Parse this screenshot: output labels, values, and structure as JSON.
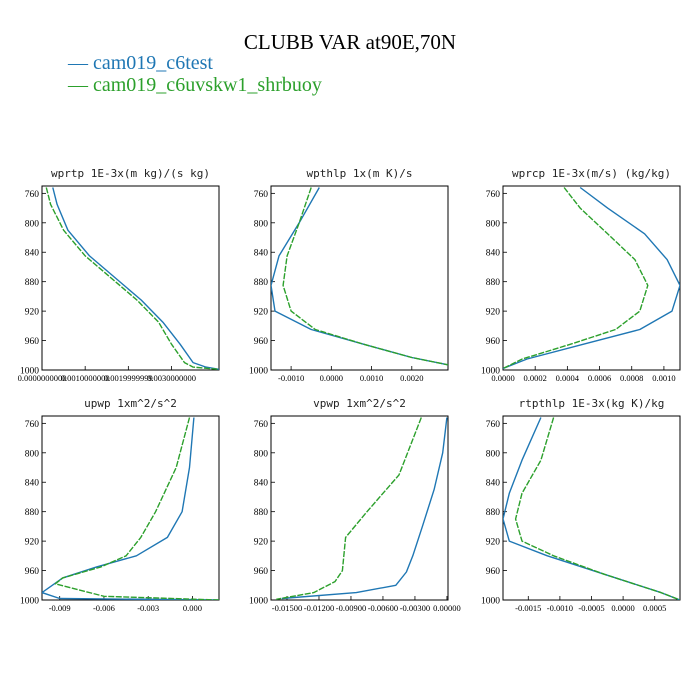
{
  "title": "CLUBB VAR at90E,70N",
  "legend": [
    {
      "label": "cam019_c6test",
      "color": "#1f77b4"
    },
    {
      "label": "cam019_c6uvskw1_shrbuoy",
      "color": "#2ca02c"
    }
  ],
  "chart_data": [
    {
      "type": "line",
      "title": "wprtp  1E-3x(m kg)/(s kg)",
      "ylim": [
        1000,
        750
      ],
      "yticks": [
        760,
        800,
        840,
        880,
        920,
        960,
        1000
      ],
      "xlim": [
        0.0,
        0.0041
      ],
      "xticks": [
        0.0,
        0.001,
        0.002,
        0.003
      ],
      "xtick_labels": [
        "0.0000000000",
        "0.0010000000",
        "0.0019999999",
        "0.0030000000"
      ],
      "series": [
        {
          "name": "cam019_c6test",
          "x": [
            0.00025,
            0.00035,
            0.0006,
            0.0011,
            0.0017,
            0.0023,
            0.0028,
            0.0032,
            0.0035,
            0.0038,
            0.0041
          ],
          "y": [
            752,
            775,
            810,
            845,
            875,
            905,
            935,
            965,
            990,
            996,
            999
          ]
        },
        {
          "name": "cam019_c6uvskw1_shrbuoy",
          "x": [
            0.0001,
            0.0002,
            0.0005,
            0.001,
            0.0016,
            0.0022,
            0.0027,
            0.003,
            0.0033,
            0.0035,
            0.0041
          ],
          "y": [
            752,
            775,
            810,
            845,
            875,
            905,
            935,
            965,
            990,
            996,
            999
          ]
        }
      ]
    },
    {
      "type": "line",
      "title": "wpthlp  1x(m K)/s",
      "ylim": [
        1000,
        750
      ],
      "yticks": [
        760,
        800,
        840,
        880,
        920,
        960,
        1000
      ],
      "xlim": [
        -0.0015,
        0.0029
      ],
      "xticks": [
        -0.001,
        0.0,
        0.001,
        0.002
      ],
      "xtick_labels": [
        "-0.0010",
        "0.0000",
        "0.0010",
        "0.0020"
      ],
      "series": [
        {
          "name": "cam019_c6test",
          "x": [
            -0.0003,
            -0.0008,
            -0.0013,
            -0.0015,
            -0.0014,
            -0.0005,
            0.0008,
            0.002,
            0.0029
          ],
          "y": [
            752,
            800,
            845,
            885,
            920,
            945,
            965,
            983,
            993
          ]
        },
        {
          "name": "cam019_c6uvskw1_shrbuoy",
          "x": [
            -0.0005,
            -0.0008,
            -0.0011,
            -0.0012,
            -0.001,
            -0.0004,
            0.0008,
            0.002,
            0.0029
          ],
          "y": [
            752,
            800,
            845,
            885,
            920,
            945,
            965,
            983,
            993
          ]
        }
      ]
    },
    {
      "type": "line",
      "title": "wprcp  1E-3x(m/s) (kg/kg)",
      "ylim": [
        1000,
        750
      ],
      "yticks": [
        760,
        800,
        840,
        880,
        920,
        960,
        1000
      ],
      "xlim": [
        0.0,
        0.0011
      ],
      "xticks": [
        0.0,
        0.0002,
        0.0004,
        0.0006,
        0.0008,
        0.001
      ],
      "xtick_labels": [
        "0.0000",
        "0.0002",
        "0.0004",
        "0.0006",
        "0.0008",
        "0.0010"
      ],
      "series": [
        {
          "name": "cam019_c6test",
          "x": [
            0.00048,
            0.00065,
            0.00088,
            0.00102,
            0.0011,
            0.00105,
            0.00085,
            0.0005,
            0.00015,
            0.0
          ],
          "y": [
            752,
            780,
            815,
            850,
            885,
            920,
            945,
            965,
            985,
            998
          ]
        },
        {
          "name": "cam019_c6uvskw1_shrbuoy",
          "x": [
            0.00038,
            0.00048,
            0.00065,
            0.00082,
            0.0009,
            0.00085,
            0.0007,
            0.00042,
            0.00012,
            0.0
          ],
          "y": [
            752,
            780,
            815,
            850,
            885,
            920,
            945,
            965,
            985,
            998
          ]
        }
      ]
    },
    {
      "type": "line",
      "title": "upwp  1xm^2/s^2",
      "ylim": [
        1000,
        750
      ],
      "yticks": [
        760,
        800,
        840,
        880,
        920,
        960,
        1000
      ],
      "xlim": [
        -0.0102,
        0.0018
      ],
      "xticks": [
        -0.009,
        -0.006,
        -0.003,
        0.0
      ],
      "xtick_labels": [
        "-0.009",
        "-0.006",
        "-0.003",
        "0.000"
      ],
      "series": [
        {
          "name": "cam019_c6test",
          "x": [
            0.0001,
            -0.0002,
            -0.0007,
            -0.0017,
            -0.0038,
            -0.0065,
            -0.0088,
            -0.0102,
            -0.009,
            0.0018
          ],
          "y": [
            752,
            820,
            880,
            915,
            940,
            955,
            970,
            990,
            998,
            1000
          ]
        },
        {
          "name": "cam019_c6uvskw1_shrbuoy",
          "x": [
            -0.0002,
            -0.0011,
            -0.0025,
            -0.0035,
            -0.0045,
            -0.0062,
            -0.0088,
            -0.0093,
            -0.006,
            0.0018
          ],
          "y": [
            752,
            820,
            880,
            915,
            940,
            955,
            970,
            978,
            995,
            1000
          ]
        }
      ]
    },
    {
      "type": "line",
      "title": "vpwp  1xm^2/s^2",
      "ylim": [
        1000,
        750
      ],
      "yticks": [
        760,
        800,
        840,
        880,
        920,
        960,
        1000
      ],
      "xlim": [
        -0.0165,
        0.0001
      ],
      "xticks": [
        -0.015,
        -0.012,
        -0.009,
        -0.006,
        -0.003,
        0.0
      ],
      "xtick_labels": [
        "-0.01500",
        "-0.01200",
        "-0.00900",
        "-0.00600",
        "-0.00300",
        "0.00000"
      ],
      "series": [
        {
          "name": "cam019_c6test",
          "x": [
            0.0,
            -0.0004,
            -0.0012,
            -0.0023,
            -0.0032,
            -0.0038,
            -0.0048,
            -0.0085,
            -0.0155
          ],
          "y": [
            752,
            800,
            850,
            900,
            940,
            962,
            980,
            990,
            998
          ]
        },
        {
          "name": "cam019_c6uvskw1_shrbuoy",
          "x": [
            -0.0024,
            -0.0045,
            -0.0075,
            -0.0095,
            -0.0098,
            -0.0105,
            -0.0125,
            -0.016
          ],
          "y": [
            752,
            830,
            880,
            915,
            960,
            975,
            990,
            999
          ]
        }
      ]
    },
    {
      "type": "line",
      "title": "rtpthlp  1E-3x(kg K)/kg",
      "ylim": [
        1000,
        750
      ],
      "yticks": [
        760,
        800,
        840,
        880,
        920,
        960,
        1000
      ],
      "xlim": [
        -0.0019,
        0.0009
      ],
      "xticks": [
        -0.0015,
        -0.001,
        -0.0005,
        0.0,
        0.0005
      ],
      "xtick_labels": [
        "-0.0015",
        "-0.0010",
        "-0.0005",
        "0.0000",
        "0.0005"
      ],
      "series": [
        {
          "name": "cam019_c6test",
          "x": [
            -0.0013,
            -0.0016,
            -0.0018,
            -0.0019,
            -0.0018,
            -0.0012,
            -0.0003,
            0.0006,
            0.0009
          ],
          "y": [
            752,
            810,
            855,
            890,
            920,
            940,
            965,
            990,
            1000
          ]
        },
        {
          "name": "cam019_c6uvskw1_shrbuoy",
          "x": [
            -0.0011,
            -0.0013,
            -0.0016,
            -0.0017,
            -0.0016,
            -0.0011,
            -0.0003,
            0.0006,
            0.0009
          ],
          "y": [
            752,
            810,
            855,
            890,
            920,
            940,
            965,
            990,
            1000
          ]
        }
      ]
    }
  ]
}
